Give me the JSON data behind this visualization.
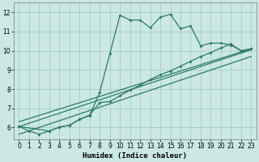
{
  "xlabel": "Humidex (Indice chaleur)",
  "xlim": [
    -0.5,
    23.5
  ],
  "ylim": [
    5.4,
    12.5
  ],
  "background_color": "#cbe8e3",
  "line_color": "#2d7a6a",
  "grid_color": "#a0c8c0",
  "line1_x": [
    0,
    1,
    2,
    3,
    4,
    5,
    6,
    7,
    8,
    9,
    10,
    11,
    12,
    13,
    14,
    15,
    16,
    17,
    18,
    19,
    20,
    21,
    22,
    23
  ],
  "line1_y": [
    6.05,
    5.82,
    5.65,
    5.82,
    6.02,
    6.12,
    6.42,
    6.62,
    7.85,
    9.85,
    11.85,
    11.6,
    11.6,
    11.2,
    11.75,
    11.9,
    11.15,
    11.3,
    10.25,
    10.4,
    10.4,
    10.3,
    10.0,
    10.1
  ],
  "line2_x": [
    0,
    3,
    4,
    5,
    6,
    7,
    8,
    9,
    10,
    11,
    12,
    13,
    14,
    15,
    16,
    17,
    18,
    19,
    20,
    21,
    22,
    23
  ],
  "line2_y": [
    6.05,
    5.82,
    6.02,
    6.12,
    6.42,
    6.65,
    7.3,
    7.35,
    7.65,
    7.95,
    8.2,
    8.5,
    8.75,
    8.95,
    9.2,
    9.45,
    9.7,
    9.9,
    10.15,
    10.35,
    10.0,
    10.1
  ],
  "line3_x": [
    0,
    23
  ],
  "line3_y": [
    6.05,
    10.05
  ],
  "line4_x": [
    0,
    23
  ],
  "line4_y": [
    6.3,
    10.1
  ],
  "line5_x": [
    0,
    23
  ],
  "line5_y": [
    5.65,
    9.7
  ],
  "xticks": [
    0,
    1,
    2,
    3,
    4,
    5,
    6,
    7,
    8,
    9,
    10,
    11,
    12,
    13,
    14,
    15,
    16,
    17,
    18,
    19,
    20,
    21,
    22,
    23
  ],
  "yticks": [
    6,
    7,
    8,
    9,
    10,
    11,
    12
  ],
  "axis_fontsize": 6.5,
  "tick_fontsize": 5.5
}
